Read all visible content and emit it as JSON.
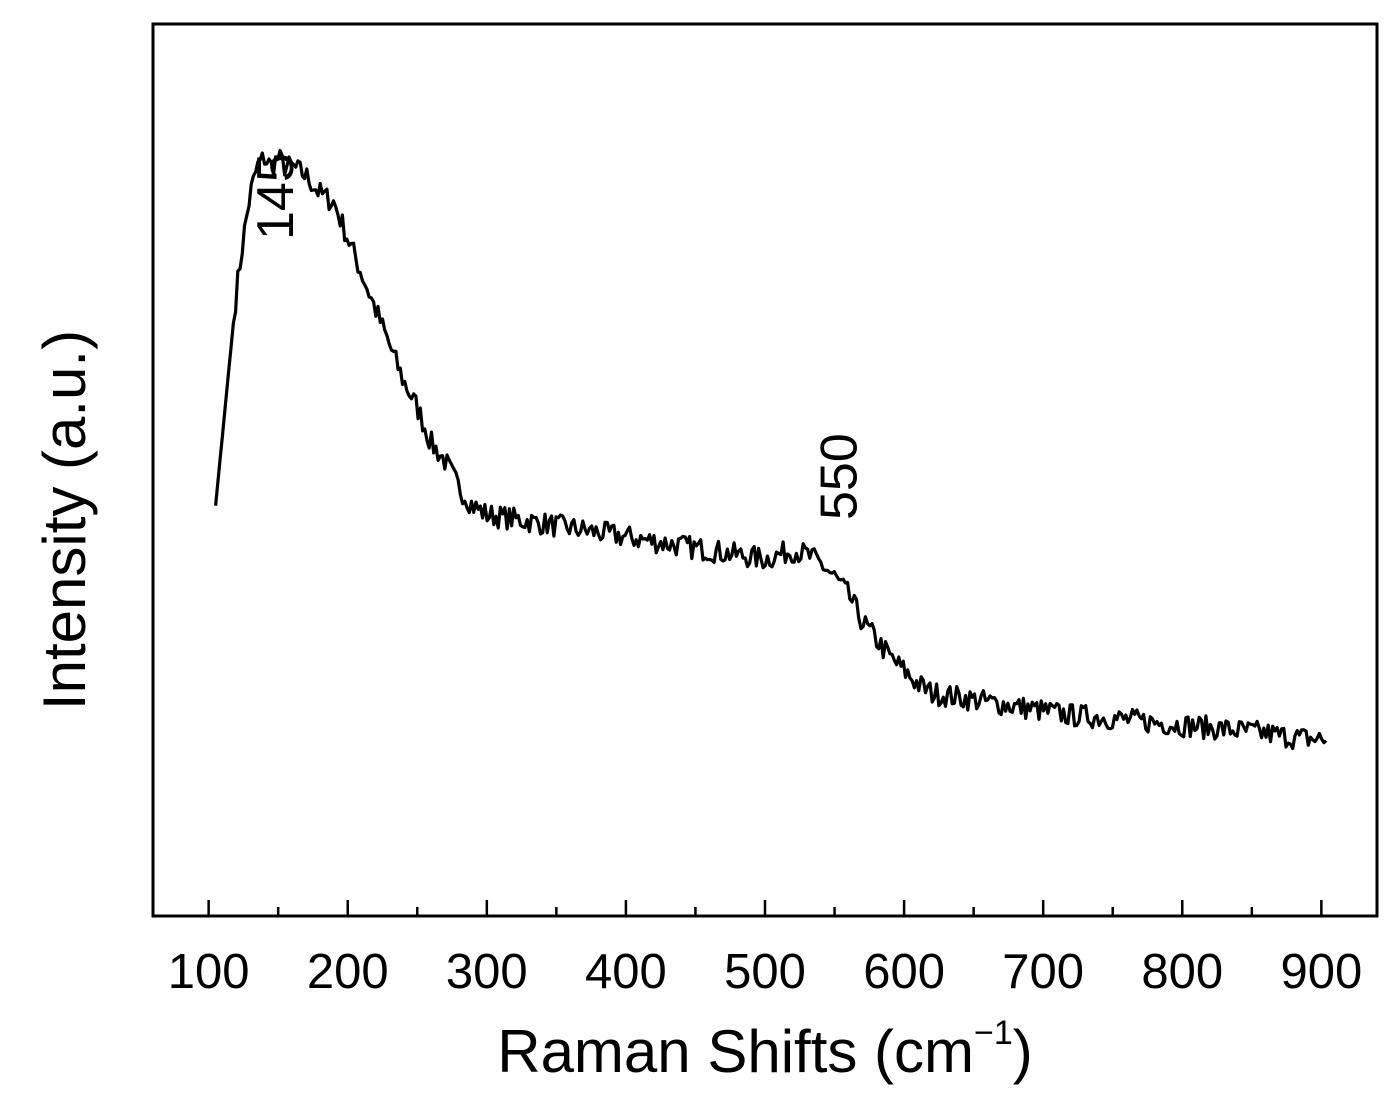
{
  "chart_data": {
    "type": "line",
    "title": "",
    "xlabel": "Raman Shifts (cm",
    "xlabel_sup": "−1",
    "xlabel_end": ")",
    "ylabel": "Intensity (a.u.)",
    "xlim": [
      60,
      940
    ],
    "ylim": [
      0,
      100
    ],
    "x_ticks": [
      100,
      200,
      300,
      400,
      500,
      600,
      700,
      800,
      900
    ],
    "minor_tick_step": 50,
    "grid": false,
    "y_tick_labels": false,
    "line_color": "#000000",
    "annotations": [
      {
        "text": "145",
        "x": 145
      },
      {
        "text": "550",
        "x": 550
      }
    ],
    "series": [
      {
        "x": [
          105,
          110,
          115,
          120,
          125,
          130,
          135,
          140,
          145,
          150,
          155,
          160,
          170,
          180,
          190,
          200,
          210,
          220,
          230,
          240,
          250,
          260,
          270,
          280,
          290,
          300,
          320,
          340,
          360,
          380,
          400,
          420,
          440,
          460,
          480,
          500,
          510,
          520,
          530,
          540,
          550,
          560,
          570,
          580,
          590,
          600,
          610,
          620,
          640,
          660,
          680,
          700,
          720,
          740,
          760,
          780,
          800,
          820,
          840,
          860,
          880,
          900,
          905
        ],
        "y": [
          46,
          54,
          62,
          70,
          76,
          81,
          84,
          85,
          84,
          85,
          84,
          84,
          83,
          81,
          80,
          76,
          72,
          68,
          64,
          60,
          57,
          53,
          51,
          48,
          46,
          45,
          44.5,
          44,
          43.5,
          43,
          42.5,
          42,
          41.5,
          41,
          40.5,
          40,
          40.5,
          41,
          40.5,
          39.5,
          38,
          36,
          33,
          31,
          29,
          27.5,
          26,
          25,
          24.5,
          24,
          23.5,
          23,
          22.5,
          22.3,
          22,
          21.7,
          21.4,
          21.1,
          20.8,
          20.5,
          20,
          19.8,
          19.6
        ]
      }
    ]
  }
}
